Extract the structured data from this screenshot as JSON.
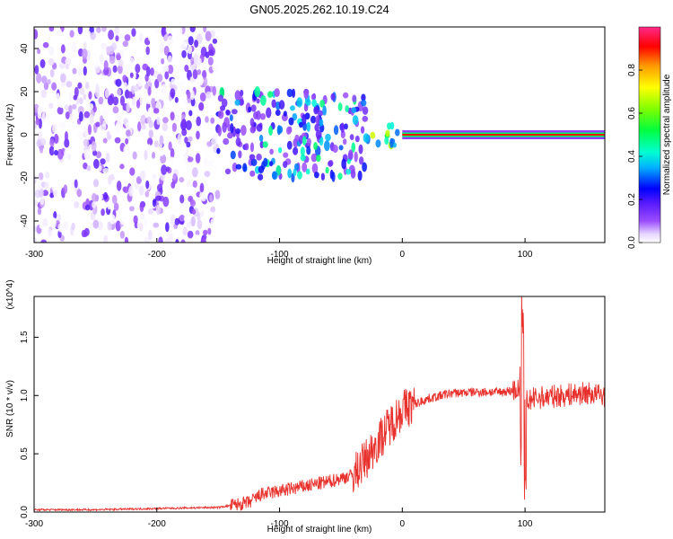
{
  "title": "GN05.2025.262.10.19.C24",
  "colors": {
    "snr_line": "#e8312c",
    "colormap": [
      "#ffffff",
      "#dcc4ff",
      "#8a2be2",
      "#3f00ff",
      "#0000ff",
      "#00e5ff",
      "#00ff80",
      "#60ff00",
      "#ffff00",
      "#ff8000",
      "#ff0000",
      "#ff3fa0"
    ]
  },
  "chart_data": [
    {
      "type": "heatmap",
      "xlabel": "Height of straight line (km)",
      "ylabel": "Frequency (Hz)",
      "xlim": [
        -300,
        165
      ],
      "ylim": [
        -50,
        50
      ],
      "xticks": [
        -300,
        -200,
        -100,
        0,
        100
      ],
      "yticks": [
        -40,
        -20,
        0,
        20,
        40
      ],
      "colorbar": {
        "label": "Normalized spectral amplitude",
        "range": [
          0,
          1
        ],
        "ticks": [
          "0.0",
          "0.2",
          "0.4",
          "0.6",
          "0.8"
        ]
      },
      "regions": [
        {
          "x": [
            -300,
            -150
          ],
          "freq_spread": [
            -50,
            50
          ],
          "amplitude": [
            0.0,
            0.2
          ]
        },
        {
          "x": [
            -150,
            -30
          ],
          "freq_spread": [
            -20,
            20
          ],
          "amplitude": [
            0.1,
            0.5
          ]
        },
        {
          "x": [
            -30,
            0
          ],
          "freq_spread": [
            -5,
            5
          ],
          "amplitude": [
            0.3,
            0.7
          ]
        },
        {
          "x": [
            0,
            165
          ],
          "freq_spread": [
            0,
            0
          ],
          "amplitude": [
            0.9,
            1.0
          ]
        }
      ]
    },
    {
      "type": "line",
      "xlabel": "Height of straight line (km)",
      "ylabel": "SNR (10 * v/v)",
      "yscale_note": "(x10^4)",
      "xlim": [
        -300,
        165
      ],
      "ylim": [
        0,
        1.85
      ],
      "xticks": [
        -300,
        -200,
        -100,
        0,
        100
      ],
      "yticks": [
        0.0,
        0.5,
        1.0,
        1.5
      ],
      "series": [
        {
          "x": [
            -300,
            -250,
            -200,
            -150,
            -125,
            -115,
            -100,
            -80,
            -60,
            -40,
            -30,
            -20,
            -10,
            0,
            20,
            40,
            60,
            80,
            95,
            98,
            100,
            110,
            130,
            150,
            165
          ],
          "values": [
            0.02,
            0.02,
            0.03,
            0.04,
            0.08,
            0.15,
            0.18,
            0.22,
            0.26,
            0.32,
            0.45,
            0.6,
            0.75,
            0.88,
            0.97,
            1.02,
            1.03,
            1.03,
            1.05,
            1.4,
            0.95,
            0.98,
            1.0,
            1.02,
            1.0
          ]
        }
      ]
    }
  ]
}
